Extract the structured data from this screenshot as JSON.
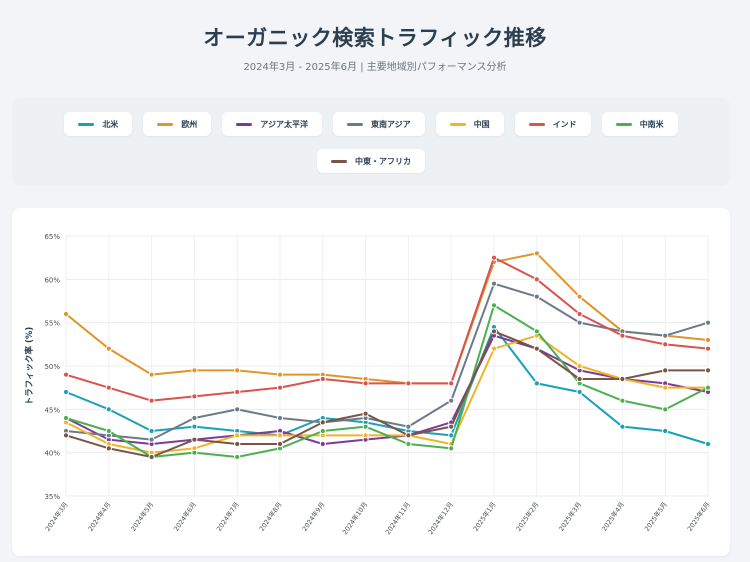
{
  "header": {
    "title": "オーガニック検索トラフィック推移",
    "subtitle": "2024年3月 - 2025年6月 | 主要地域別パフォーマンス分析"
  },
  "legend": [
    {
      "label": "北米",
      "color": "#17a2b8"
    },
    {
      "label": "欧州",
      "color": "#e0952a"
    },
    {
      "label": "アジア太平洋",
      "color": "#7d3c98"
    },
    {
      "label": "東南アジア",
      "color": "#6c7a89"
    },
    {
      "label": "中国",
      "color": "#f0b429"
    },
    {
      "label": "インド",
      "color": "#d9534f"
    },
    {
      "label": "中南米",
      "color": "#4caf50"
    },
    {
      "label": "中東・アフリカ",
      "color": "#795548"
    }
  ],
  "chart_data": {
    "type": "line",
    "title": "オーガニック検索トラフィック推移",
    "xlabel": "",
    "ylabel": "トラフィック率 (%)",
    "ylim": [
      35,
      65
    ],
    "yticks": [
      35,
      40,
      45,
      50,
      55,
      60,
      65
    ],
    "ytick_labels": [
      "35%",
      "40%",
      "45%",
      "50%",
      "55%",
      "60%",
      "65%"
    ],
    "grid": true,
    "legend_position": "top",
    "categories": [
      "2024年3月",
      "2024年4月",
      "2024年5月",
      "2024年6月",
      "2024年7月",
      "2024年8月",
      "2024年9月",
      "2024年10月",
      "2024年11月",
      "2024年12月",
      "2025年1月",
      "2025年2月",
      "2025年3月",
      "2025年4月",
      "2025年5月",
      "2025年6月"
    ],
    "series": [
      {
        "name": "北米",
        "color": "#17a2b8",
        "values": [
          47,
          45,
          42.5,
          43,
          42.5,
          42,
          44,
          43.5,
          42.5,
          42,
          54.5,
          48,
          47,
          43,
          42.5,
          41
        ]
      },
      {
        "name": "欧州",
        "color": "#e0952a",
        "values": [
          56,
          52,
          49,
          49.5,
          49.5,
          49,
          49,
          48.5,
          48,
          48,
          62,
          63,
          58,
          54,
          53.5,
          53
        ]
      },
      {
        "name": "アジア太平洋",
        "color": "#7d3c98",
        "values": [
          44,
          41.5,
          41,
          41.5,
          42,
          42.5,
          41,
          41.5,
          42,
          43.5,
          53.5,
          52,
          49.5,
          48.5,
          48,
          47
        ]
      },
      {
        "name": "東南アジア",
        "color": "#6c7a89",
        "values": [
          42.5,
          42,
          41.5,
          44,
          45,
          44,
          43.5,
          44,
          43,
          46,
          59.5,
          58,
          55,
          54,
          53.5,
          55
        ]
      },
      {
        "name": "中国",
        "color": "#f0b429",
        "values": [
          43.5,
          41,
          40,
          40.5,
          42,
          42,
          42,
          42,
          42,
          41,
          52,
          53.5,
          50,
          48.5,
          47.5,
          47.5
        ]
      },
      {
        "name": "インド",
        "color": "#d9534f",
        "values": [
          49,
          47.5,
          46,
          46.5,
          47,
          47.5,
          48.5,
          48,
          48,
          48,
          62.5,
          60,
          56,
          53.5,
          52.5,
          52
        ]
      },
      {
        "name": "中南米",
        "color": "#4caf50",
        "values": [
          44,
          42.5,
          39.5,
          40,
          39.5,
          40.5,
          42.5,
          43,
          41,
          40.5,
          57,
          54,
          48,
          46,
          45,
          47.5
        ]
      },
      {
        "name": "中東・アフリカ",
        "color": "#795548",
        "values": [
          42,
          40.5,
          39.5,
          41.5,
          41,
          41,
          43.5,
          44.5,
          42,
          43,
          54,
          52,
          48.5,
          48.5,
          49.5,
          49.5
        ]
      }
    ]
  }
}
